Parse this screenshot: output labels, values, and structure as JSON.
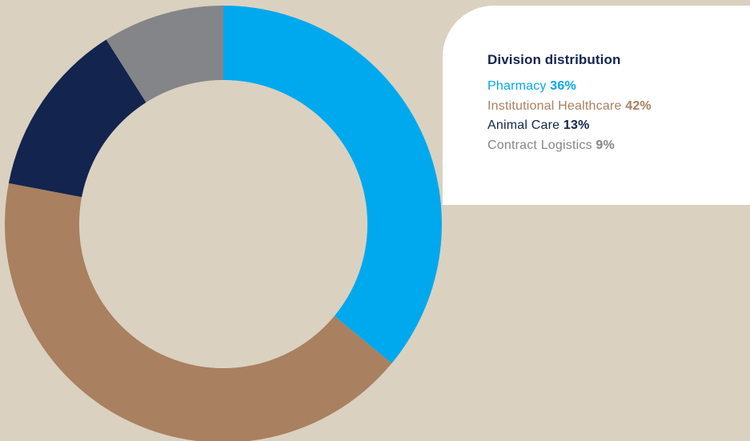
{
  "colors": {
    "background": "#dbd1c1",
    "card": "#ffffff",
    "title": "#13244f"
  },
  "chart_data": {
    "type": "pie",
    "donut": true,
    "title": "Division distribution",
    "series": [
      {
        "name": "Pharmacy",
        "value": 36,
        "label": "36%",
        "color": "#00a9ed"
      },
      {
        "name": "Institutional Healthcare",
        "value": 42,
        "label": "42%",
        "color": "#a98060"
      },
      {
        "name": "Animal Care",
        "value": 13,
        "label": "13%",
        "color": "#13244f"
      },
      {
        "name": "Contract Logistics",
        "value": 9,
        "label": "9%",
        "color": "#848589"
      }
    ],
    "start_angle_deg": 0,
    "direction": "clockwise",
    "legend_position": "top-right"
  }
}
